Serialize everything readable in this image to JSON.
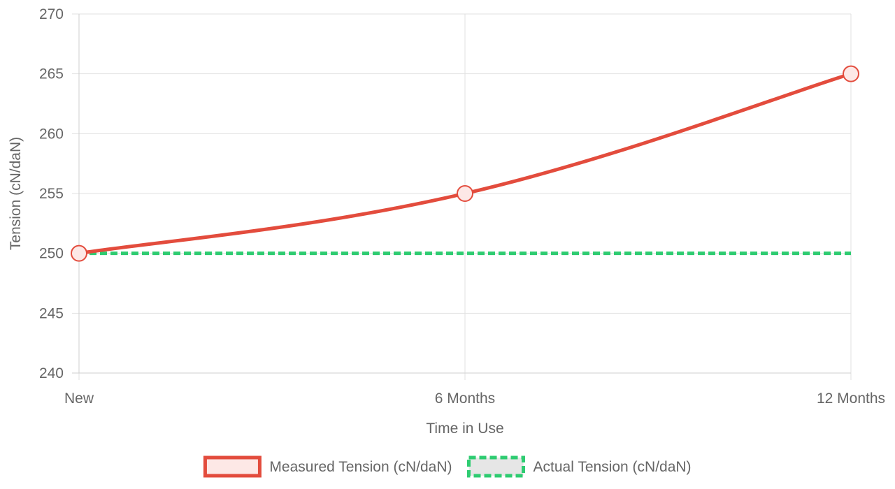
{
  "chart_data": {
    "type": "line",
    "categories": [
      "New",
      "6 Months",
      "12 Months"
    ],
    "series": [
      {
        "name": "Measured Tension (cN/daN)",
        "values": [
          250,
          255,
          265
        ],
        "color": "#e34c3d",
        "fill": "#fde8e6",
        "style": "solid",
        "markers": true,
        "curve": "smooth"
      },
      {
        "name": "Actual Tension (cN/daN)",
        "values": [
          250,
          250,
          250
        ],
        "color": "#2ecc71",
        "fill": "#e6e6e6",
        "style": "dashed",
        "markers": false
      }
    ],
    "xlabel": "Time in Use",
    "ylabel": "Tension (cN/daN)",
    "ylim": [
      240,
      270
    ],
    "yticks": [
      240,
      245,
      250,
      255,
      260,
      265,
      270
    ],
    "grid": true,
    "legend_position": "bottom"
  }
}
